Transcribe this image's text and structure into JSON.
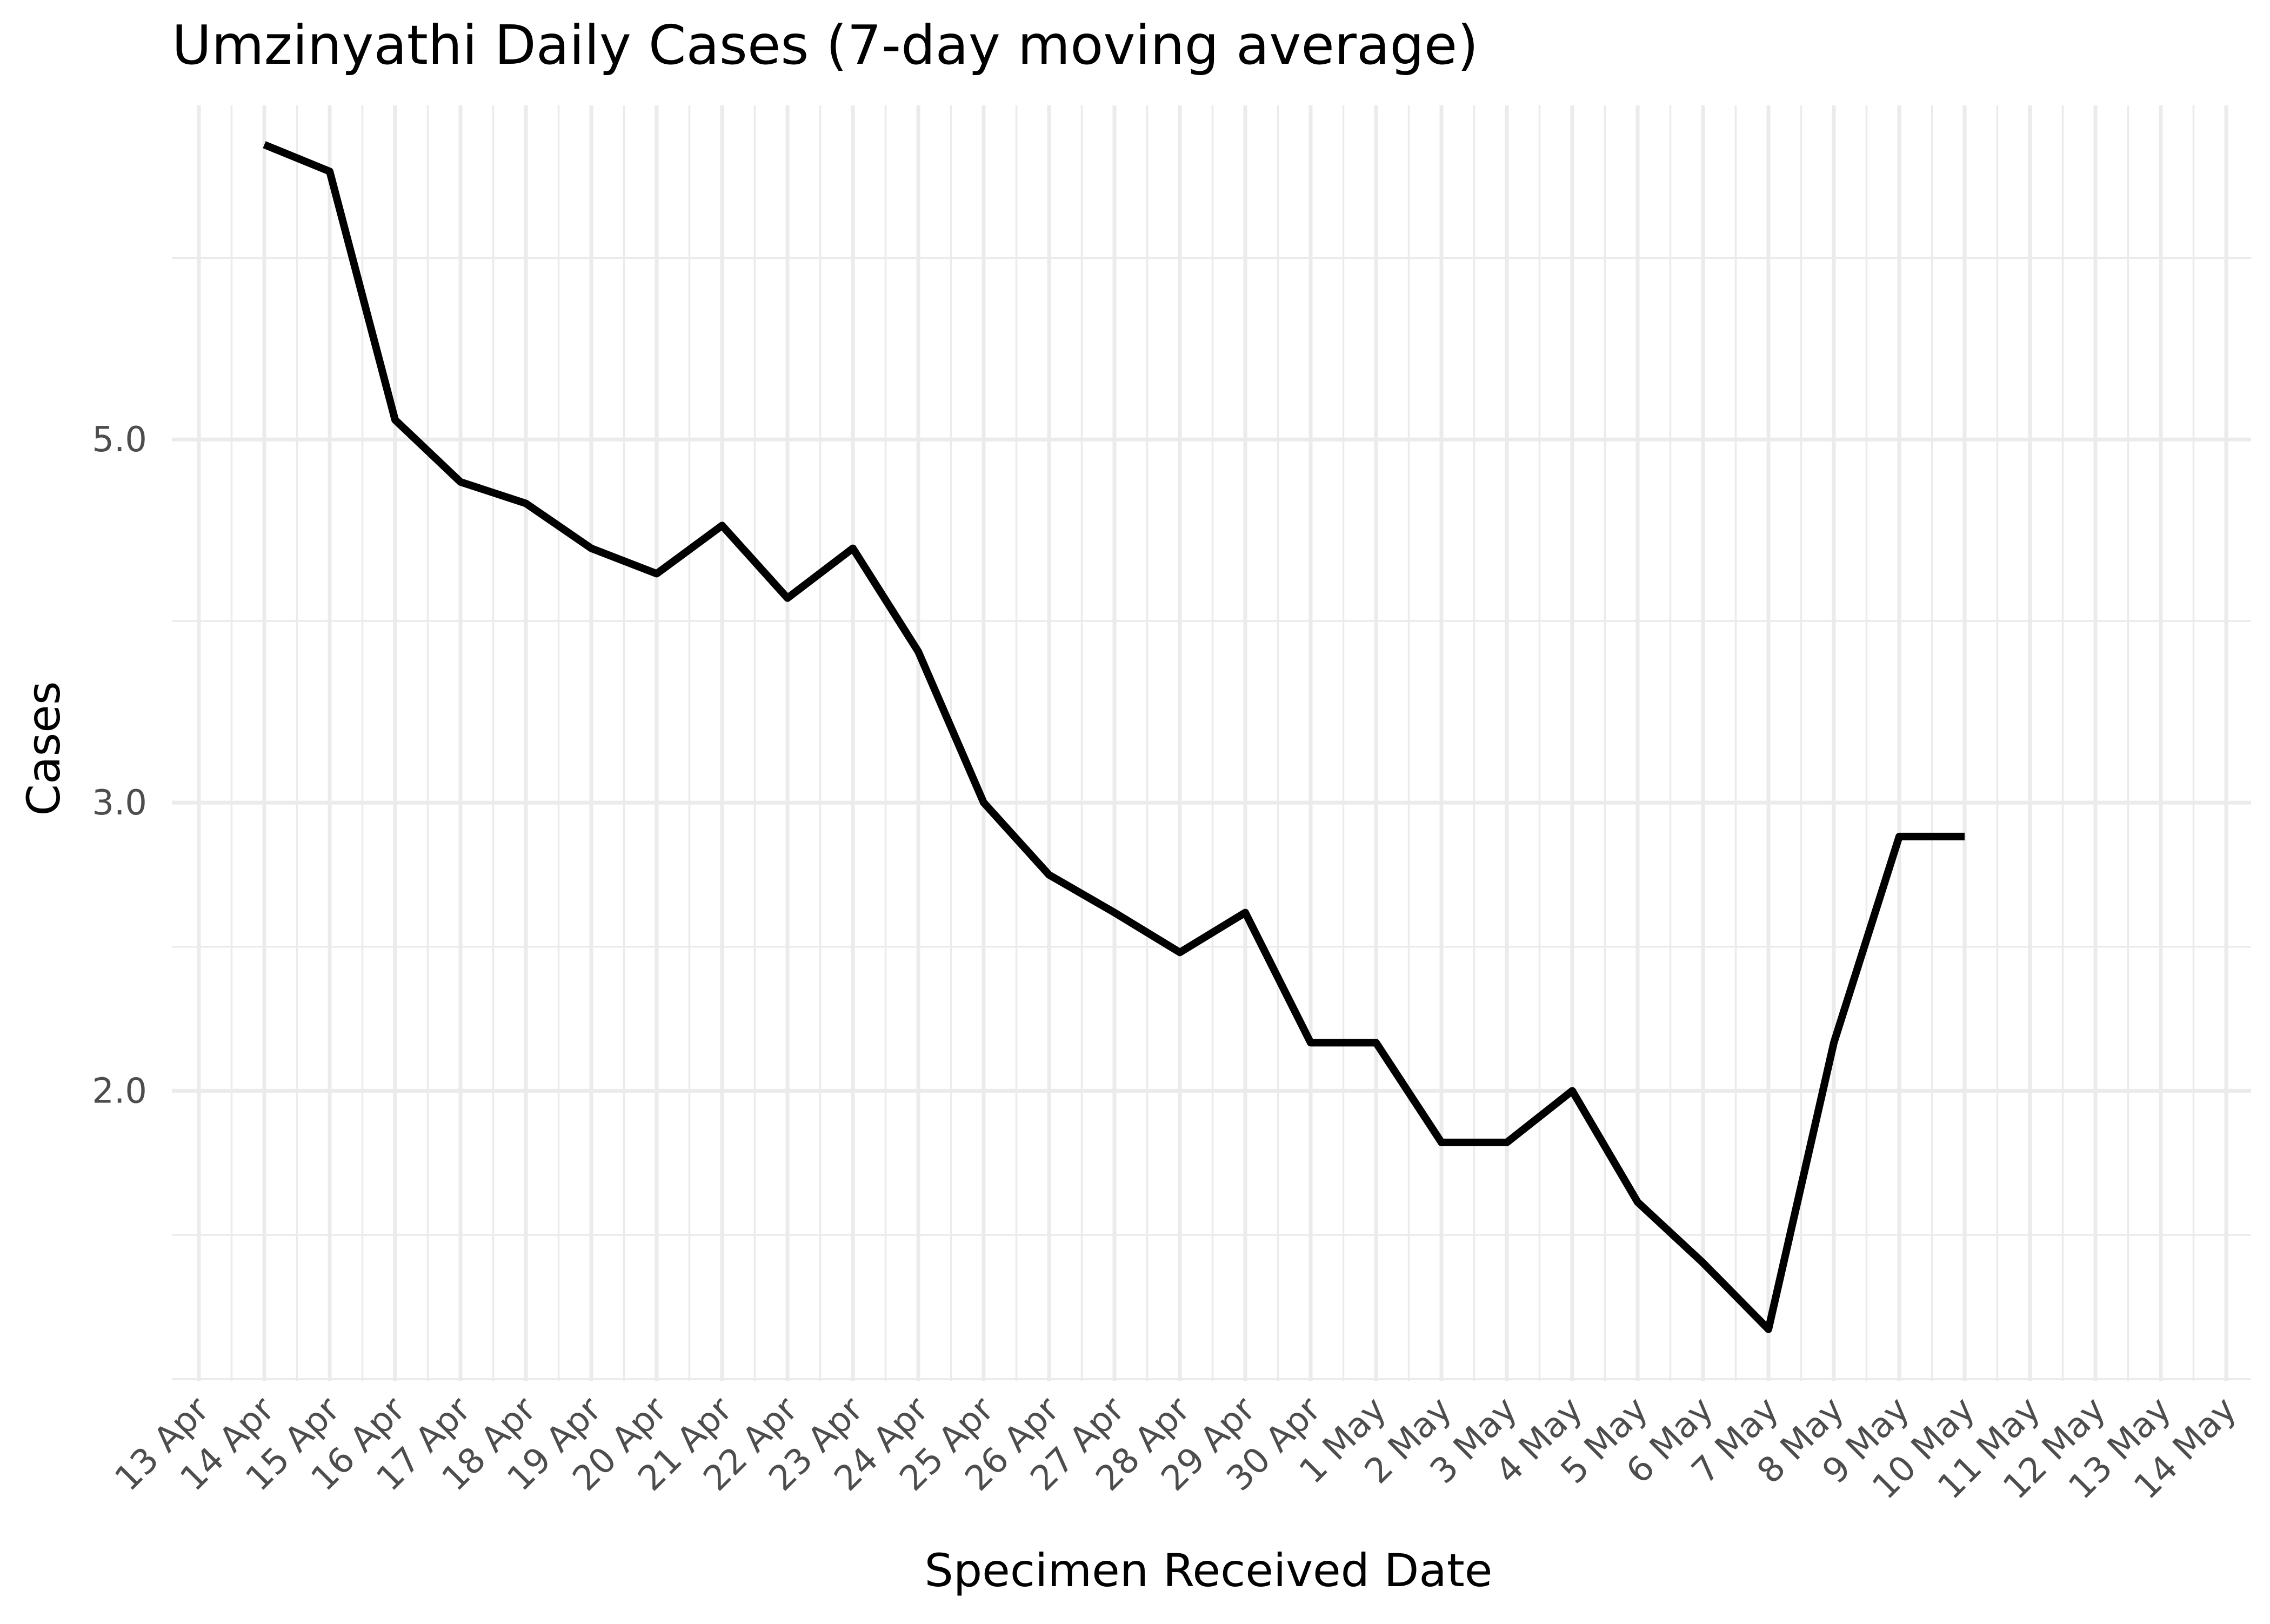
{
  "chart_data": {
    "type": "line",
    "title": "Umzinyathi Daily Cases (7-day moving average)",
    "xlabel": "Specimen Received Date",
    "ylabel": "Cases",
    "y_scale": "log10",
    "ylim": [
      1.33,
      8.0
    ],
    "y_ticks": [
      {
        "value": 2.0,
        "label": "2.0"
      },
      {
        "value": 3.0,
        "label": "3.0"
      },
      {
        "value": 5.0,
        "label": "5.0"
      }
    ],
    "x_ticks": [
      "13 Apr",
      "14 Apr",
      "15 Apr",
      "16 Apr",
      "17 Apr",
      "18 Apr",
      "19 Apr",
      "20 Apr",
      "21 Apr",
      "22 Apr",
      "23 Apr",
      "24 Apr",
      "25 Apr",
      "26 Apr",
      "27 Apr",
      "28 Apr",
      "29 Apr",
      "30 Apr",
      "1 May",
      "2 May",
      "3 May",
      "4 May",
      "5 May",
      "6 May",
      "7 May",
      "8 May",
      "9 May",
      "10 May",
      "11 May",
      "12 May",
      "13 May",
      "14 May"
    ],
    "grid": true,
    "legend": "none",
    "series": [
      {
        "color": "#000000",
        "x": [
          "14 Apr",
          "15 Apr",
          "16 Apr",
          "17 Apr",
          "18 Apr",
          "19 Apr",
          "20 Apr",
          "21 Apr",
          "22 Apr",
          "23 Apr",
          "24 Apr",
          "25 Apr",
          "26 Apr",
          "27 Apr",
          "28 Apr",
          "29 Apr",
          "30 Apr",
          "1 May",
          "2 May",
          "3 May",
          "4 May",
          "5 May",
          "6 May",
          "7 May",
          "8 May",
          "9 May",
          "10 May"
        ],
        "y": [
          7.57,
          7.29,
          5.14,
          4.71,
          4.57,
          4.29,
          4.14,
          4.43,
          4.0,
          4.29,
          3.71,
          3.0,
          2.71,
          2.57,
          2.43,
          2.57,
          2.14,
          2.14,
          1.86,
          1.86,
          2.0,
          1.71,
          1.57,
          1.43,
          2.14,
          2.86,
          2.86
        ]
      }
    ]
  }
}
